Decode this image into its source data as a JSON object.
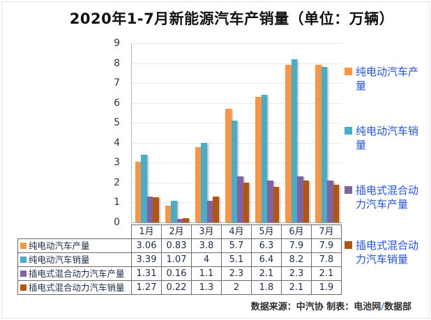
{
  "title": "2020年1-7月新能源汽车产销量（单位：万辆）",
  "chart_data": {
    "type": "bar",
    "title": "2020年1-7月新能源汽车产销量（单位：万辆）",
    "unit": "万辆",
    "categories": [
      "1月",
      "2月",
      "3月",
      "4月",
      "5月",
      "6月",
      "7月"
    ],
    "series": [
      {
        "name": "纯电动汽车产量",
        "color": "#F79646",
        "values": [
          3.06,
          0.83,
          3.8,
          5.7,
          6.3,
          7.9,
          7.9
        ]
      },
      {
        "name": "纯电动汽车销量",
        "color": "#4BACC6",
        "values": [
          3.39,
          1.07,
          4,
          5.1,
          6.4,
          8.2,
          7.8
        ]
      },
      {
        "name": "插电式混合动力汽车产量",
        "color": "#8064A2",
        "values": [
          1.31,
          0.16,
          1.1,
          2.3,
          2.1,
          2.3,
          2.1
        ]
      },
      {
        "name": "插电式混合动力汽车销量",
        "color": "#B2550E",
        "values": [
          1.27,
          0.22,
          1.3,
          2,
          1.8,
          2.1,
          1.9
        ]
      }
    ],
    "ylim": [
      0,
      9
    ],
    "yticks": [
      0,
      1,
      2,
      3,
      4,
      5,
      6,
      7,
      8,
      9
    ],
    "grid": true,
    "legend_position": "right",
    "legend_text_color": "#2353CE",
    "show_data_table": true
  },
  "footer": {
    "before_slash": "数据来源：中汽协  制表：电池网",
    "slash": "/",
    "after_slash": "数据部"
  }
}
